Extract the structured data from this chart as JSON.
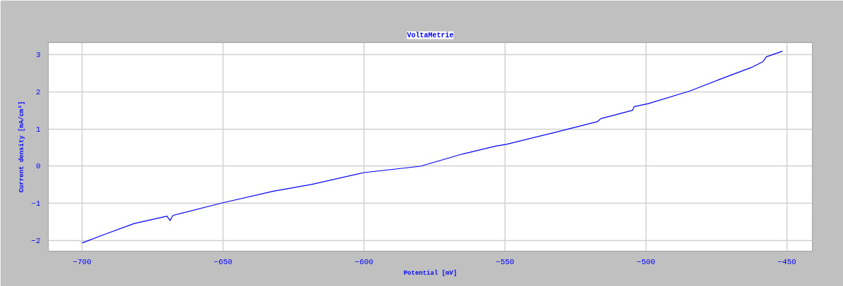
{
  "chart_data": {
    "type": "line",
    "title": "VoltaMetrie",
    "xlabel": "Potential [mV]",
    "ylabel": "Current density [mA/cm²]",
    "xlim": [
      -712,
      -441
    ],
    "ylim": [
      -2.28,
      3.32
    ],
    "xticks": [
      -700,
      -650,
      -600,
      -550,
      -500,
      -450
    ],
    "yticks": [
      -2,
      -1,
      0,
      1,
      2,
      3
    ],
    "grid": true,
    "series": [
      {
        "color": "#0000ff",
        "x": [
          -700,
          -691.7,
          -681.6,
          -669.9,
          -668.8,
          -667.8,
          -650,
          -632.1,
          -618.7,
          -600,
          -580,
          -565,
          -553.3,
          -549.5,
          -533.2,
          -517.2,
          -516,
          -504.8,
          -504.2,
          -499.2,
          -484.5,
          -474.0,
          -462.7,
          -458.5,
          -457.3,
          -451.6
        ],
        "values": [
          -2.06,
          -1.82,
          -1.54,
          -1.34,
          -1.46,
          -1.32,
          -0.98,
          -0.67,
          -0.49,
          -0.17,
          0.0,
          0.33,
          0.54,
          0.59,
          0.89,
          1.2,
          1.28,
          1.5,
          1.6,
          1.68,
          2.02,
          2.33,
          2.65,
          2.81,
          2.94,
          3.09
        ]
      }
    ]
  }
}
